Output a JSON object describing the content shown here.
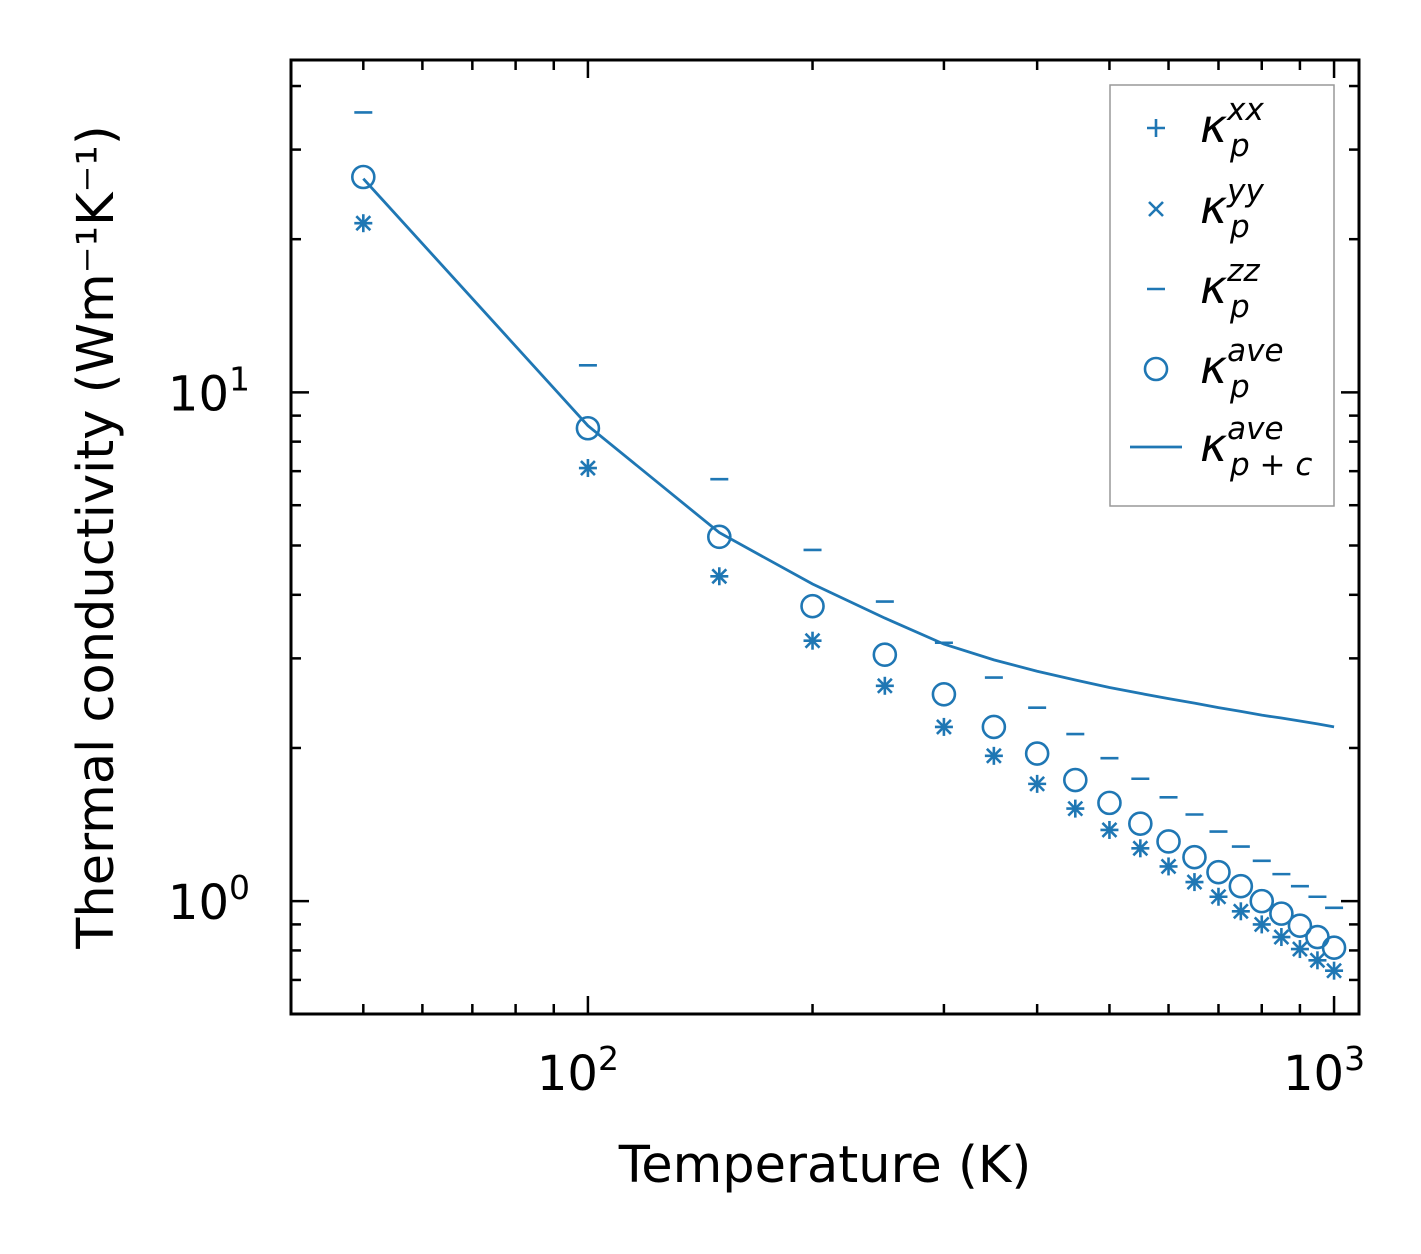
{
  "chart_data": {
    "type": "scatter",
    "title": "",
    "xlabel": "Temperature (K)",
    "ylabel": "Thermal conductivity (Wm⁻¹K⁻¹)",
    "xscale": "log",
    "yscale": "log",
    "xlim": [
      40,
      1080
    ],
    "ylim": [
      0.6,
      45
    ],
    "x_major_ticks": [
      100,
      1000
    ],
    "x_major_tick_labels": [
      {
        "base": "10",
        "exp": "2"
      },
      {
        "base": "10",
        "exp": "3"
      }
    ],
    "y_major_ticks": [
      1,
      10
    ],
    "y_major_tick_labels": [
      {
        "base": "10",
        "exp": "0"
      },
      {
        "base": "10",
        "exp": "1"
      }
    ],
    "legend_position": "top-right",
    "color": "#1f77b4",
    "x": [
      50,
      100,
      150,
      200,
      250,
      300,
      350,
      400,
      450,
      500,
      550,
      600,
      650,
      700,
      750,
      800,
      850,
      900,
      950,
      1000
    ],
    "series": [
      {
        "name": "kappa_p_xx",
        "marker": "plus",
        "legend": {
          "base": "κ",
          "sup": "xx",
          "sub": "p"
        },
        "values": [
          21.5,
          7.1,
          4.35,
          3.25,
          2.65,
          2.2,
          1.93,
          1.7,
          1.52,
          1.38,
          1.27,
          1.17,
          1.09,
          1.02,
          0.955,
          0.9,
          0.85,
          0.805,
          0.765,
          0.73
        ]
      },
      {
        "name": "kappa_p_yy",
        "marker": "x",
        "legend": {
          "base": "κ",
          "sup": "yy",
          "sub": "p"
        },
        "values": [
          21.5,
          7.1,
          4.35,
          3.25,
          2.65,
          2.2,
          1.93,
          1.7,
          1.52,
          1.38,
          1.27,
          1.17,
          1.09,
          1.02,
          0.955,
          0.9,
          0.85,
          0.805,
          0.765,
          0.73
        ]
      },
      {
        "name": "kappa_p_zz",
        "marker": "hline",
        "legend": {
          "base": "κ",
          "sup": "zz",
          "sub": "p"
        },
        "values": [
          35.5,
          11.3,
          6.75,
          4.9,
          3.88,
          3.22,
          2.75,
          2.4,
          2.13,
          1.91,
          1.74,
          1.6,
          1.48,
          1.37,
          1.28,
          1.2,
          1.13,
          1.07,
          1.02,
          0.97
        ]
      },
      {
        "name": "kappa_p_ave",
        "marker": "circle",
        "legend": {
          "base": "κ",
          "sup": "ave",
          "sub": "p"
        },
        "values": [
          26.5,
          8.5,
          5.2,
          3.8,
          3.05,
          2.55,
          2.2,
          1.95,
          1.73,
          1.56,
          1.42,
          1.31,
          1.22,
          1.14,
          1.07,
          1.0,
          0.945,
          0.895,
          0.85,
          0.81
        ]
      },
      {
        "name": "kappa_pc_ave",
        "marker": "line",
        "legend": {
          "base": "κ",
          "sup": "ave",
          "sub": "p + c"
        },
        "values": [
          26.3,
          8.6,
          5.3,
          4.2,
          3.6,
          3.2,
          2.98,
          2.83,
          2.72,
          2.63,
          2.56,
          2.5,
          2.45,
          2.4,
          2.36,
          2.32,
          2.29,
          2.26,
          2.23,
          2.2
        ]
      }
    ]
  }
}
